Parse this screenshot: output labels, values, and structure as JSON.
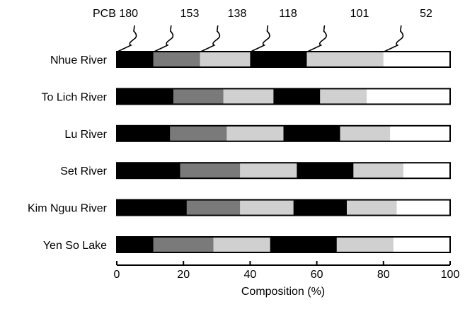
{
  "chart_data": {
    "type": "bar",
    "stacked": true,
    "orientation": "horizontal",
    "xlabel": "Composition (%)",
    "xlim": [
      0,
      100
    ],
    "xticks": [
      0,
      20,
      40,
      60,
      80,
      100
    ],
    "categories": [
      "Nhue River",
      "To Lich River",
      "Lu River",
      "Set River",
      "Kim Nguu River",
      "Yen So Lake"
    ],
    "series": [
      {
        "name": "PCB 180",
        "color": "#000000",
        "values": [
          11,
          17,
          16,
          19,
          21,
          11
        ]
      },
      {
        "name": "153",
        "color": "#7a7a7a",
        "values": [
          14,
          15,
          17,
          18,
          16,
          18
        ]
      },
      {
        "name": "138",
        "color": "#d0d0d0",
        "values": [
          15,
          15,
          17,
          17,
          16,
          17
        ]
      },
      {
        "name": "118",
        "color": "#000000",
        "values": [
          17,
          14,
          17,
          17,
          16,
          20
        ]
      },
      {
        "name": "101",
        "color": "#d0d0d0",
        "values": [
          23,
          14,
          15,
          15,
          15,
          17
        ]
      },
      {
        "name": "52",
        "color": "#ffffff",
        "values": [
          20,
          25,
          18,
          14,
          16,
          17
        ]
      }
    ],
    "top_labels": [
      "PCB 180",
      "153",
      "138",
      "118",
      "101",
      "52"
    ]
  }
}
